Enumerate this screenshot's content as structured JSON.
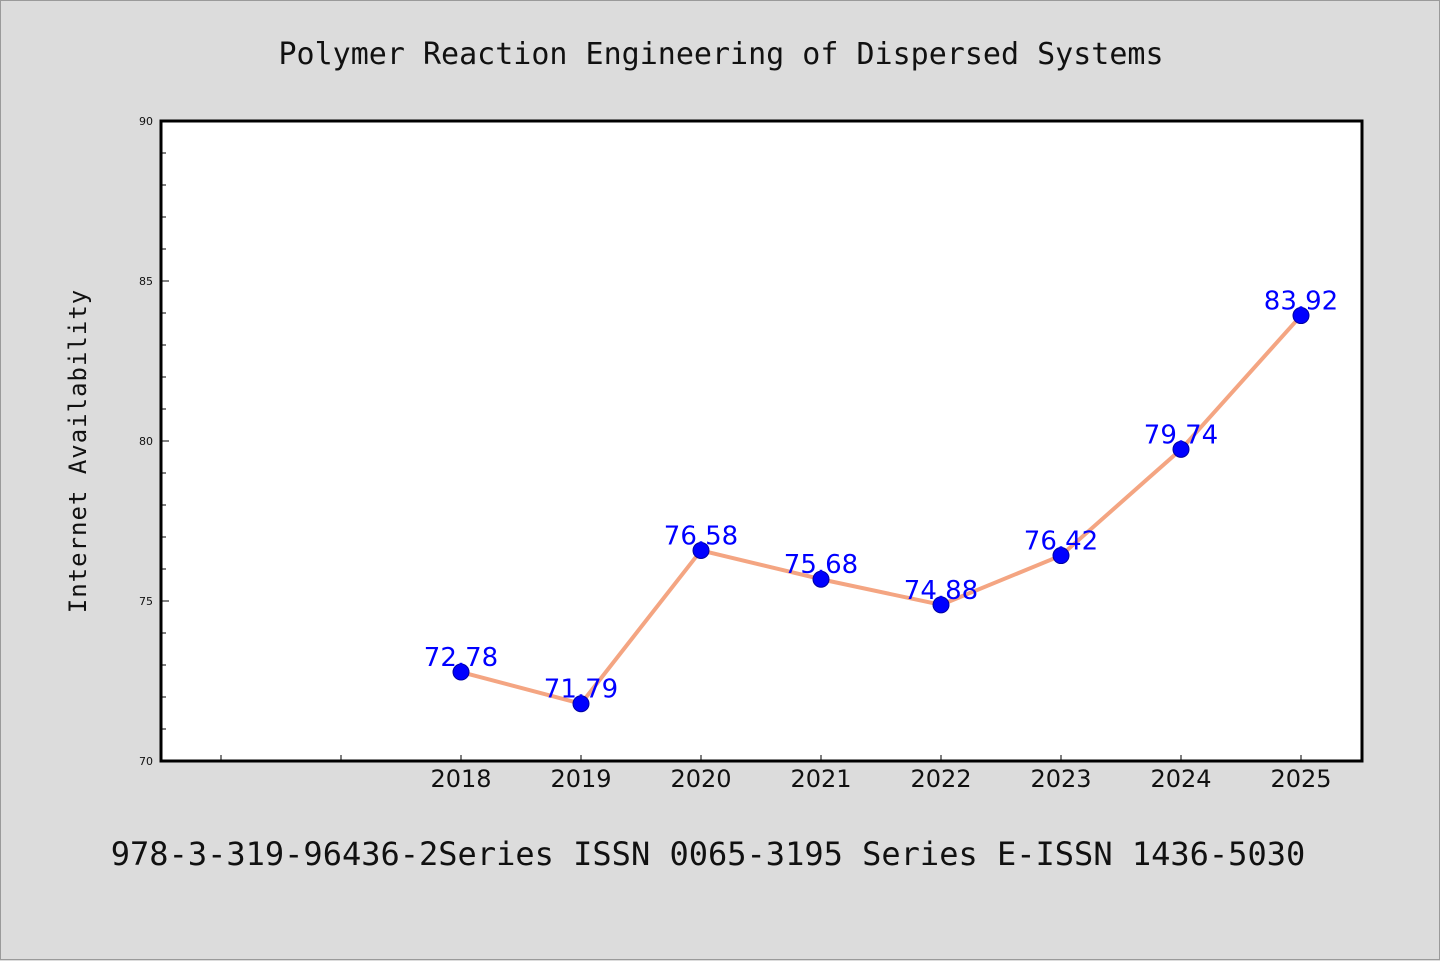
{
  "chart_data": {
    "type": "line",
    "title": "Polymer Reaction Engineering of Dispersed Systems",
    "xlabel": "",
    "ylabel": "Internet Availability",
    "x": [
      "2018",
      "2019",
      "2020",
      "2021",
      "2022",
      "2023",
      "2024",
      "2025"
    ],
    "series": [
      {
        "values": [
          72.78,
          71.79,
          76.58,
          75.68,
          74.88,
          76.42,
          79.74,
          83.92
        ]
      }
    ],
    "data_labels": [
      "72.78",
      "71.79",
      "76.58",
      "75.68",
      "74.88",
      "76.42",
      "79.74",
      "83.92"
    ],
    "ylim": [
      70,
      90
    ],
    "yticks": [
      "70",
      "75",
      "80",
      "85",
      "90"
    ],
    "grid": false,
    "line_color": "#f4a582",
    "marker_color": "#0000ff",
    "label_color": "#0000ff"
  },
  "footer": "978-3-319-96436-2Series ISSN 0065-3195 Series E-ISSN 1436-5030"
}
